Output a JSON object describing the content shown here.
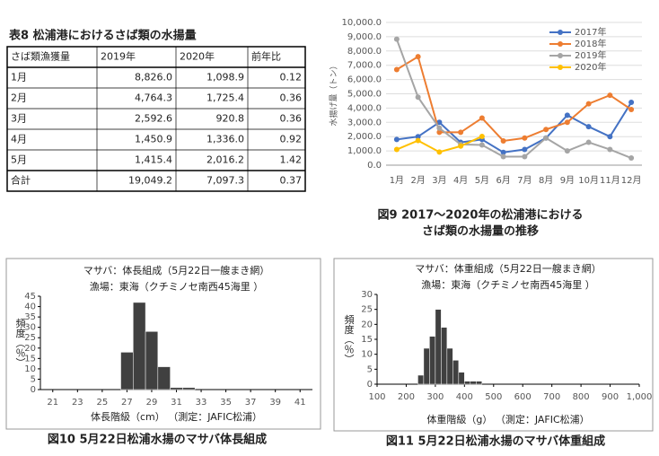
{
  "table": {
    "title": "表8  松浦港におけるさば類の水揚量",
    "header": [
      "さば類漁獲量",
      "2019年",
      "2020年",
      "前年比"
    ],
    "rows": [
      [
        "1月",
        "8,826.0",
        "1,098.9",
        "0.12"
      ],
      [
        "2月",
        "4,764.3",
        "1,725.4",
        "0.36"
      ],
      [
        "3月",
        "2,592.6",
        "920.8",
        "0.36"
      ],
      [
        "4月",
        "1,450.9",
        "1,336.0",
        "0.92"
      ],
      [
        "5月",
        "1,415.4",
        "2,016.2",
        "1.42"
      ],
      [
        "合計",
        "19,049.2",
        "7,097.3",
        "0.37"
      ]
    ]
  },
  "chart_data": [
    {
      "type": "line",
      "ylabel": "水揚げ量（トン）",
      "caption": [
        "図9  2017～2020年の松浦港における",
        "さば類の水揚量の推移"
      ],
      "categories": [
        "1月",
        "2月",
        "3月",
        "4月",
        "5月",
        "6月",
        "7月",
        "8月",
        "9月",
        "10月",
        "11月",
        "12月"
      ],
      "series": [
        {
          "name": "2017年",
          "color": "#4472c4",
          "values": [
            1800,
            2000,
            3000,
            1600,
            1800,
            900,
            1100,
            1900,
            3500,
            2700,
            2000,
            4400
          ]
        },
        {
          "name": "2018年",
          "color": "#ed7d31",
          "values": [
            6700,
            7600,
            2300,
            2300,
            3300,
            1700,
            1900,
            2500,
            3000,
            4300,
            4900,
            3900
          ]
        },
        {
          "name": "2019年",
          "color": "#a5a5a5",
          "values": [
            8826,
            4764.3,
            2592.6,
            1450.9,
            1415.4,
            600,
            600,
            1900,
            1000,
            1600,
            1100,
            500
          ]
        },
        {
          "name": "2020年",
          "color": "#ffc000",
          "values": [
            1098.9,
            1725.4,
            920.8,
            1336,
            2016.2,
            null,
            null,
            null,
            null,
            null,
            null,
            null
          ]
        }
      ],
      "ylim": [
        0,
        10000
      ],
      "yticks": [
        {
          "value": 0,
          "label": "0.0"
        },
        {
          "value": 1000,
          "label": "1,000.0"
        },
        {
          "value": 2000,
          "label": "2,000.0"
        },
        {
          "value": 3000,
          "label": "3,000.0"
        },
        {
          "value": 4000,
          "label": "4,000.0"
        },
        {
          "value": 5000,
          "label": "5,000.0"
        },
        {
          "value": 6000,
          "label": "6,000.0"
        },
        {
          "value": 7000,
          "label": "7,000.0"
        },
        {
          "value": 8000,
          "label": "8,000.0"
        },
        {
          "value": 9000,
          "label": "9,000.0"
        },
        {
          "value": 10000,
          "label": "10,000.0"
        }
      ],
      "grid": true,
      "legend": "top-right"
    },
    {
      "type": "histogram",
      "title": [
        "マサバ：体長組成（5月22日一艘まき網）",
        "漁場：東海（クチミノセ南西45海里 ）"
      ],
      "ylabel": "頻度（％）",
      "xlabel": "体長階級（cm）  （測定：JAFIC松浦）",
      "caption": [
        "図10  5月22日松浦水揚のマサバ体長組成"
      ],
      "bins": [
        26.5,
        27.5,
        28.5,
        29.5,
        30.5,
        31.5,
        32.5
      ],
      "values": [
        18,
        42,
        28,
        11,
        1,
        1
      ],
      "color": "#404040",
      "xlim": [
        20,
        42
      ],
      "xticks": [
        21,
        23,
        25,
        27,
        29,
        31,
        33,
        35,
        37,
        39,
        41
      ],
      "ylim": [
        0,
        45
      ],
      "yticks": [
        0,
        5,
        10,
        15,
        20,
        25,
        30,
        35,
        40,
        45
      ]
    },
    {
      "type": "histogram",
      "title": [
        "マサバ：体重組成（5月22日一艘まき網）",
        "漁場：東海（クチミノセ南西45海里 ）"
      ],
      "ylabel": "頻度（％）",
      "xlabel": "体重階級（g）  （測定：JAFIC松浦）",
      "caption": [
        "図11  5月22日松浦水揚のマサバ体重組成"
      ],
      "bins": [
        240,
        260,
        280,
        300,
        320,
        340,
        360,
        380,
        400,
        420,
        440,
        460
      ],
      "values": [
        3,
        12,
        16,
        25,
        19,
        12,
        8,
        4,
        1,
        1,
        1
      ],
      "color": "#404040",
      "xlim": [
        100,
        1000
      ],
      "xticks": [
        100,
        200,
        300,
        400,
        500,
        600,
        700,
        800,
        900,
        {
          "value": 1000,
          "label": "1,000"
        }
      ],
      "ylim": [
        0,
        30
      ],
      "yticks": [
        0,
        5,
        10,
        15,
        20,
        25,
        30
      ]
    }
  ]
}
